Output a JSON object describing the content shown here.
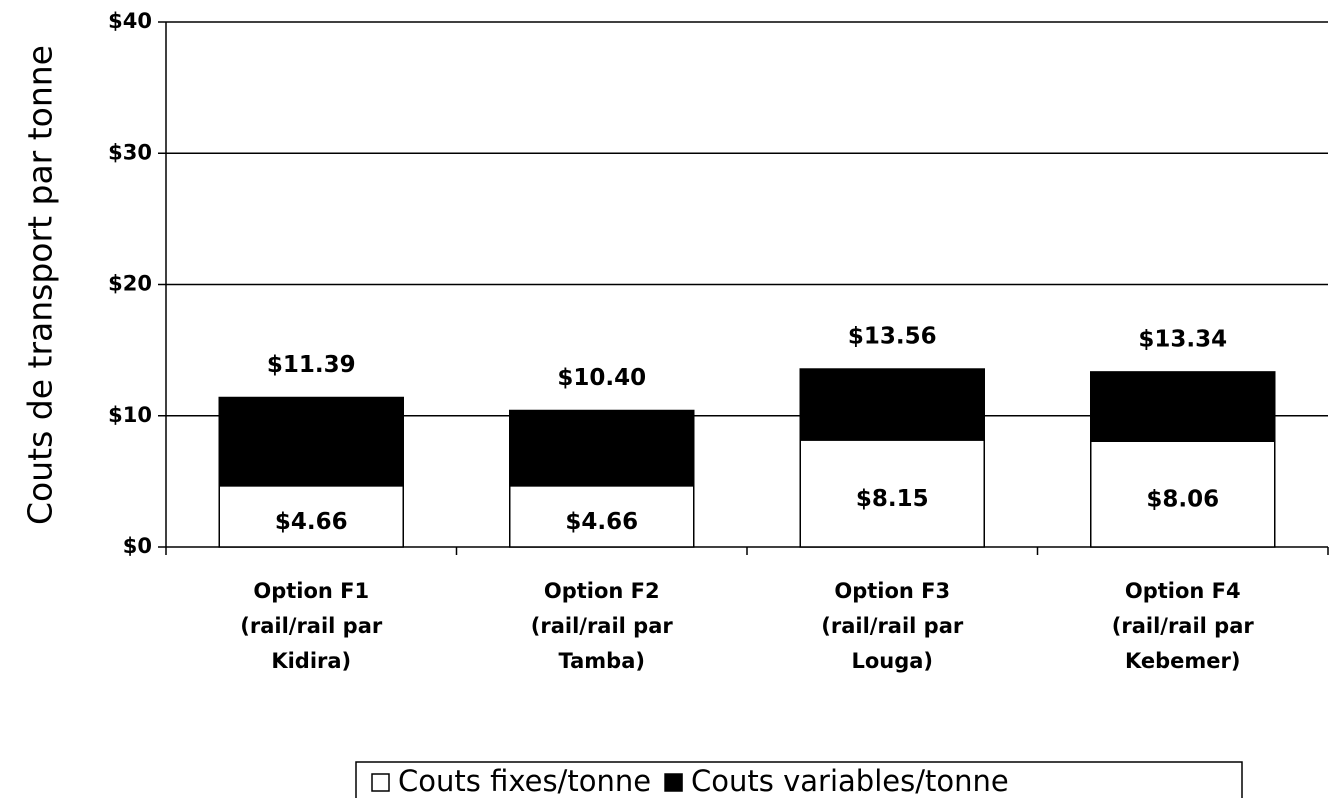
{
  "chart_data": {
    "type": "stacked_bar",
    "y_label": "Couts de transport par tonne",
    "categories": [
      "Option F1\n(rail/rail par\nKidira)",
      "Option F2\n(rail/rail par\nTamba)",
      "Option F3\n(rail/rail par\nLouga)",
      "Option F4\n(rail/rail par\nKebemer)"
    ],
    "series": [
      {
        "name": "Couts fixes/tonne",
        "color": "#ffffff",
        "values": [
          4.66,
          4.66,
          8.15,
          8.06
        ],
        "value_labels": [
          "$4.66",
          "$4.66",
          "$8.15",
          "$8.06"
        ]
      },
      {
        "name": "Couts variables/tonne",
        "color": "#000000",
        "values": [
          6.73,
          5.74,
          5.41,
          5.28
        ]
      }
    ],
    "totals": [
      11.39,
      10.4,
      13.56,
      13.34
    ],
    "total_labels": [
      "$11.39",
      "$10.40",
      "$13.56",
      "$13.34"
    ],
    "ylim": [
      0,
      40
    ],
    "yticks": [
      {
        "value": 0,
        "label": "$0"
      },
      {
        "value": 10,
        "label": "$10"
      },
      {
        "value": 20,
        "label": "$20"
      },
      {
        "value": 30,
        "label": "$30"
      },
      {
        "value": 40,
        "label": "$40"
      }
    ],
    "grid": true,
    "legend": "bottom"
  }
}
